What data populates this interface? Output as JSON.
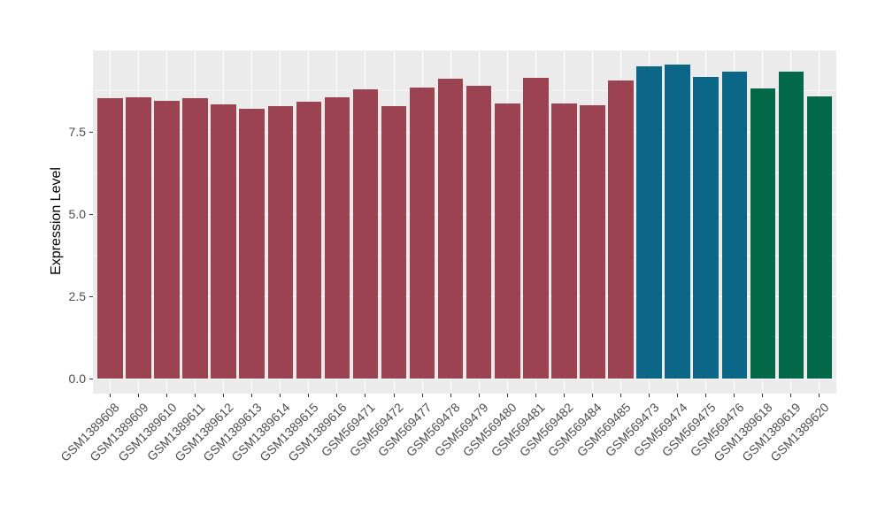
{
  "figure": {
    "background_color": "#FFFFFF",
    "panel_color": "#EBEBEB",
    "grid_color": "#FFFFFF",
    "tick_mark_color": "#333333",
    "axis_text_color": "#4D4D4D",
    "axis_title_color": "#000000"
  },
  "chart_data": {
    "type": "bar",
    "title": "",
    "xlabel": "",
    "ylabel": "Expression Level",
    "ylim": [
      0,
      10
    ],
    "yticks": [
      0,
      2.5,
      5,
      7.5
    ],
    "ytick_labels": [
      "0.0",
      "2.5",
      "5.0",
      "7.5"
    ],
    "grid": "ggplot2 style: white major + minor horizontal gridlines and white vertical gridlines at each category, on grey panel",
    "legend": "none",
    "x_label_rotation_deg": 45,
    "categories": [
      "GSM1389608",
      "GSM1389609",
      "GSM1389610",
      "GSM1389611",
      "GSM1389612",
      "GSM1389613",
      "GSM1389614",
      "GSM1389615",
      "GSM1389616",
      "GSM569471",
      "GSM569472",
      "GSM569477",
      "GSM569478",
      "GSM569479",
      "GSM569480",
      "GSM569481",
      "GSM569482",
      "GSM569484",
      "GSM569485",
      "GSM569473",
      "GSM569474",
      "GSM569475",
      "GSM569476",
      "GSM1389618",
      "GSM1389619",
      "GSM1389620"
    ],
    "values": [
      8.52,
      8.54,
      8.45,
      8.53,
      8.32,
      8.2,
      8.27,
      8.42,
      8.54,
      8.8,
      8.28,
      8.84,
      9.11,
      8.91,
      8.35,
      9.13,
      8.36,
      8.3,
      9.05,
      9.5,
      9.54,
      9.17,
      9.32,
      8.81,
      9.33,
      8.58
    ],
    "groups": [
      0,
      0,
      0,
      0,
      0,
      0,
      0,
      0,
      0,
      0,
      0,
      0,
      0,
      0,
      0,
      0,
      0,
      0,
      0,
      1,
      1,
      1,
      1,
      2,
      2,
      2
    ],
    "group_colors": [
      "#9B4350",
      "#0C6687",
      "#026847"
    ]
  }
}
